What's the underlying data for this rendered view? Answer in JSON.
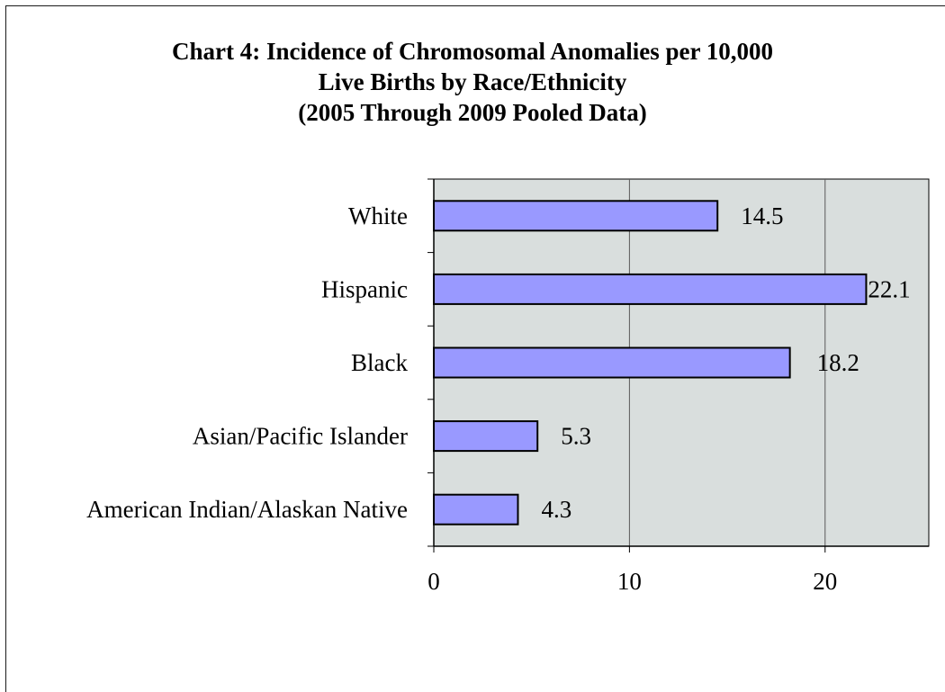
{
  "chart_data": {
    "type": "bar",
    "orientation": "horizontal",
    "title": [
      "Chart 4: Incidence of Chromosomal Anomalies per 10,000",
      "Live Births by Race/Ethnicity",
      "(2005 Through 2009 Pooled Data)"
    ],
    "categories": [
      "White",
      "Hispanic",
      "Black",
      "Asian/Pacific Islander",
      "American Indian/Alaskan Native"
    ],
    "values": [
      14.5,
      22.1,
      18.2,
      5.3,
      4.3
    ],
    "data_labels": [
      "14.5",
      "22.1",
      "18.2",
      "5.3",
      "4.3"
    ],
    "x_ticks": [
      "0",
      "10",
      "20"
    ],
    "xlim": [
      0,
      25.3
    ],
    "xlabel": "",
    "ylabel": "",
    "grid": "vertical major gridlines",
    "legend": "none",
    "colors": {
      "bar_fill": "#9999ff",
      "bar_stroke": "#000000",
      "plot_background": "#d9dedd",
      "gridline": "#5a5a5a"
    }
  }
}
